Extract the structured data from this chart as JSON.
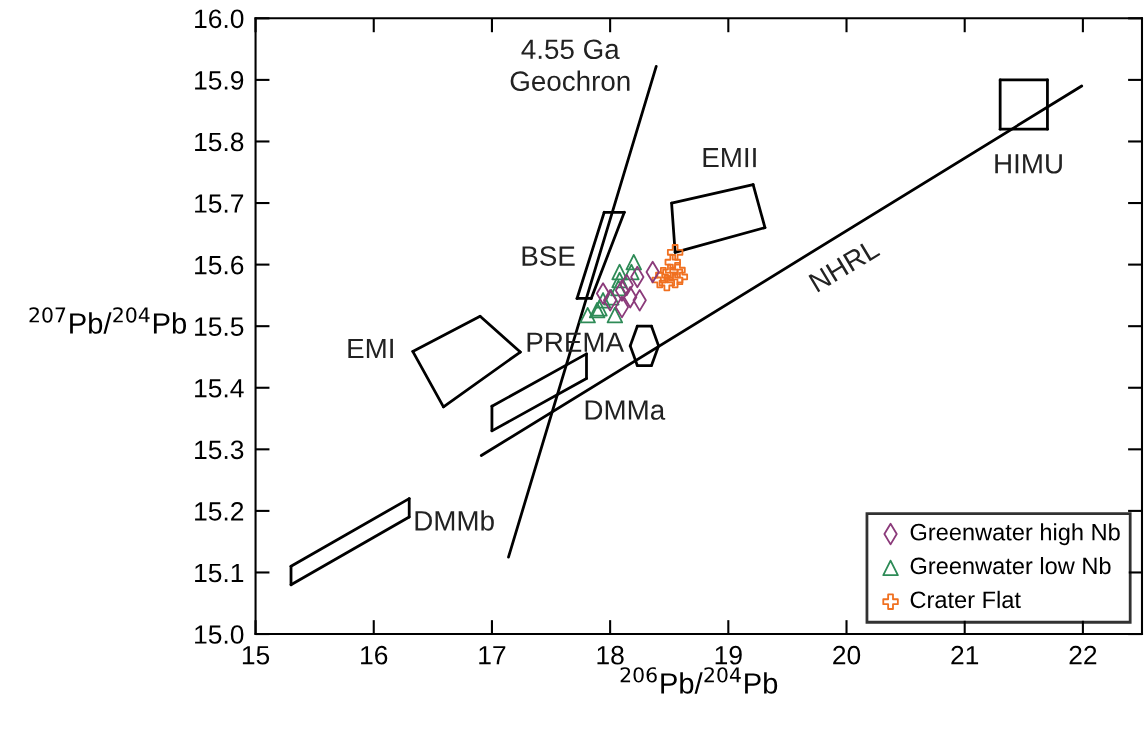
{
  "chart_data": {
    "type": "scatter",
    "xlabel": "$^{206}$Pb/$^{204}$Pb",
    "ylabel": "$^{207}$Pb/$^{204}$Pb",
    "xlim": [
      15,
      22.5
    ],
    "ylim": [
      15.0,
      16.0
    ],
    "xticks": [
      15,
      16,
      17,
      18,
      19,
      20,
      21,
      22
    ],
    "yticks": [
      {
        "value": 15.0,
        "label": "15.0"
      },
      15.1,
      15.2,
      15.3,
      15.4,
      15.5,
      15.6,
      15.7,
      15.8,
      15.9,
      {
        "value": 16.0,
        "label": "16.0"
      }
    ],
    "grid": false,
    "legend": "bottom right",
    "series": [
      {
        "name": "Greenwater high Nb",
        "marker": "diamond",
        "color": "#8b3a7a",
        "x": [
          18.36,
          18.23,
          18.25,
          18.1,
          18.0,
          18.17,
          18.14,
          17.94,
          18.1
        ],
        "values": [
          15.588,
          15.58,
          15.542,
          15.531,
          15.542,
          15.547,
          15.567,
          15.553,
          15.558
        ]
      },
      {
        "name": "Greenwater low Nb",
        "marker": "triangle",
        "color": "#2e8b57",
        "x": [
          18.2,
          18.18,
          18.08,
          18.08,
          18.07,
          18.01,
          17.94,
          17.89,
          17.81,
          18.04,
          17.91
        ],
        "values": [
          15.604,
          15.588,
          15.588,
          15.575,
          15.562,
          15.547,
          15.542,
          15.526,
          15.518,
          15.518,
          15.529
        ]
      },
      {
        "name": "Crater Flat",
        "marker": "cross",
        "color": "#f07020",
        "x": [
          18.55,
          18.53,
          18.51,
          18.57,
          18.42,
          18.48,
          18.55,
          18.45,
          18.59
        ],
        "values": [
          15.62,
          15.604,
          15.588,
          15.591,
          15.575,
          15.57,
          15.575,
          15.583,
          15.58
        ]
      },
      {
        "type": "line",
        "color": "#000000",
        "x": [
          17.14,
          18.39
        ],
        "values": [
          15.125,
          15.922
        ]
      },
      {
        "type": "line",
        "color": "#000000",
        "x": [
          16.91,
          21.99
        ],
        "values": [
          15.29,
          15.89
        ]
      },
      {
        "type": "line",
        "color": "#000000",
        "x": [
          21.3,
          21.7
        ],
        "values": [
          15.82,
          15.82
        ]
      },
      {
        "type": "line",
        "color": "#000000",
        "x": [
          21.7,
          21.7
        ],
        "values": [
          15.82,
          15.9
        ]
      },
      {
        "type": "line",
        "color": "#000000",
        "x": [
          21.3,
          21.7
        ],
        "values": [
          15.9,
          15.9
        ]
      },
      {
        "type": "line",
        "color": "#000000",
        "x": [
          21.3,
          21.3
        ],
        "values": [
          15.82,
          15.9
        ]
      },
      {
        "type": "line",
        "color": "#000000",
        "x": [
          18.52,
          19.21
        ],
        "values": [
          15.7,
          15.73
        ]
      },
      {
        "type": "line",
        "color": "#000000",
        "x": [
          19.21,
          19.31
        ],
        "values": [
          15.73,
          15.66
        ]
      },
      {
        "type": "line",
        "color": "#000000",
        "x": [
          18.55,
          19.31
        ],
        "values": [
          15.62,
          15.66
        ]
      },
      {
        "type": "line",
        "color": "#000000",
        "x": [
          18.52,
          18.55
        ],
        "values": [
          15.7,
          15.62
        ]
      },
      {
        "type": "line",
        "color": "#000000",
        "x": [
          17.95,
          18.12
        ],
        "values": [
          15.685,
          15.685
        ]
      },
      {
        "type": "line",
        "color": "#000000",
        "x": [
          17.84,
          18.12
        ],
        "values": [
          15.545,
          15.685
        ]
      },
      {
        "type": "line",
        "color": "#000000",
        "x": [
          17.72,
          17.84
        ],
        "values": [
          15.545,
          15.545
        ]
      },
      {
        "type": "line",
        "color": "#000000",
        "x": [
          17.72,
          17.95
        ],
        "values": [
          15.545,
          15.685
        ]
      },
      {
        "type": "line",
        "color": "#000000",
        "x": [
          16.33,
          16.9
        ],
        "values": [
          15.459,
          15.516
        ]
      },
      {
        "type": "line",
        "color": "#000000",
        "x": [
          16.9,
          17.24
        ],
        "values": [
          15.516,
          15.458
        ]
      },
      {
        "type": "line",
        "color": "#000000",
        "x": [
          16.59,
          17.24
        ],
        "values": [
          15.369,
          15.458
        ]
      },
      {
        "type": "line",
        "color": "#000000",
        "x": [
          16.33,
          16.59
        ],
        "values": [
          15.459,
          15.369
        ]
      },
      {
        "type": "line",
        "color": "#000000",
        "x": [
          17.0,
          17.0
        ],
        "values": [
          15.33,
          15.37
        ]
      },
      {
        "type": "line",
        "color": "#000000",
        "x": [
          17.0,
          17.8
        ],
        "values": [
          15.37,
          15.455
        ]
      },
      {
        "type": "line",
        "color": "#000000",
        "x": [
          17.8,
          17.8
        ],
        "values": [
          15.415,
          15.455
        ]
      },
      {
        "type": "line",
        "color": "#000000",
        "x": [
          17.0,
          17.8
        ],
        "values": [
          15.33,
          15.415
        ]
      },
      {
        "type": "line",
        "color": "#000000",
        "x": [
          15.3,
          15.3
        ],
        "values": [
          15.08,
          15.11
        ]
      },
      {
        "type": "line",
        "color": "#000000",
        "x": [
          15.3,
          16.3
        ],
        "values": [
          15.11,
          15.22
        ]
      },
      {
        "type": "line",
        "color": "#000000",
        "x": [
          16.3,
          16.3
        ],
        "values": [
          15.19,
          15.22
        ]
      },
      {
        "type": "line",
        "color": "#000000",
        "x": [
          15.3,
          16.3
        ],
        "values": [
          15.08,
          15.19
        ]
      },
      {
        "type": "line",
        "color": "#000000",
        "x": [
          18.17,
          18.23
        ],
        "values": [
          15.468,
          15.5
        ]
      },
      {
        "type": "line",
        "color": "#000000",
        "x": [
          18.23,
          18.35
        ],
        "values": [
          15.5,
          15.5
        ]
      },
      {
        "type": "line",
        "color": "#000000",
        "x": [
          18.35,
          18.41
        ],
        "values": [
          15.5,
          15.468
        ]
      },
      {
        "type": "line",
        "color": "#000000",
        "x": [
          18.35,
          18.41
        ],
        "values": [
          15.436,
          15.468
        ]
      },
      {
        "type": "line",
        "color": "#000000",
        "x": [
          18.23,
          18.35
        ],
        "values": [
          15.436,
          15.436
        ]
      },
      {
        "type": "line",
        "color": "#000000",
        "x": [
          18.17,
          18.23
        ],
        "values": [
          15.468,
          15.436
        ]
      }
    ],
    "annotations": [
      "4.55 Ga\nGeochron",
      "EMII",
      "HIMU",
      "BSE",
      "NHRL",
      "EMI",
      "PREMA",
      "DMMa",
      "DMMb"
    ]
  }
}
